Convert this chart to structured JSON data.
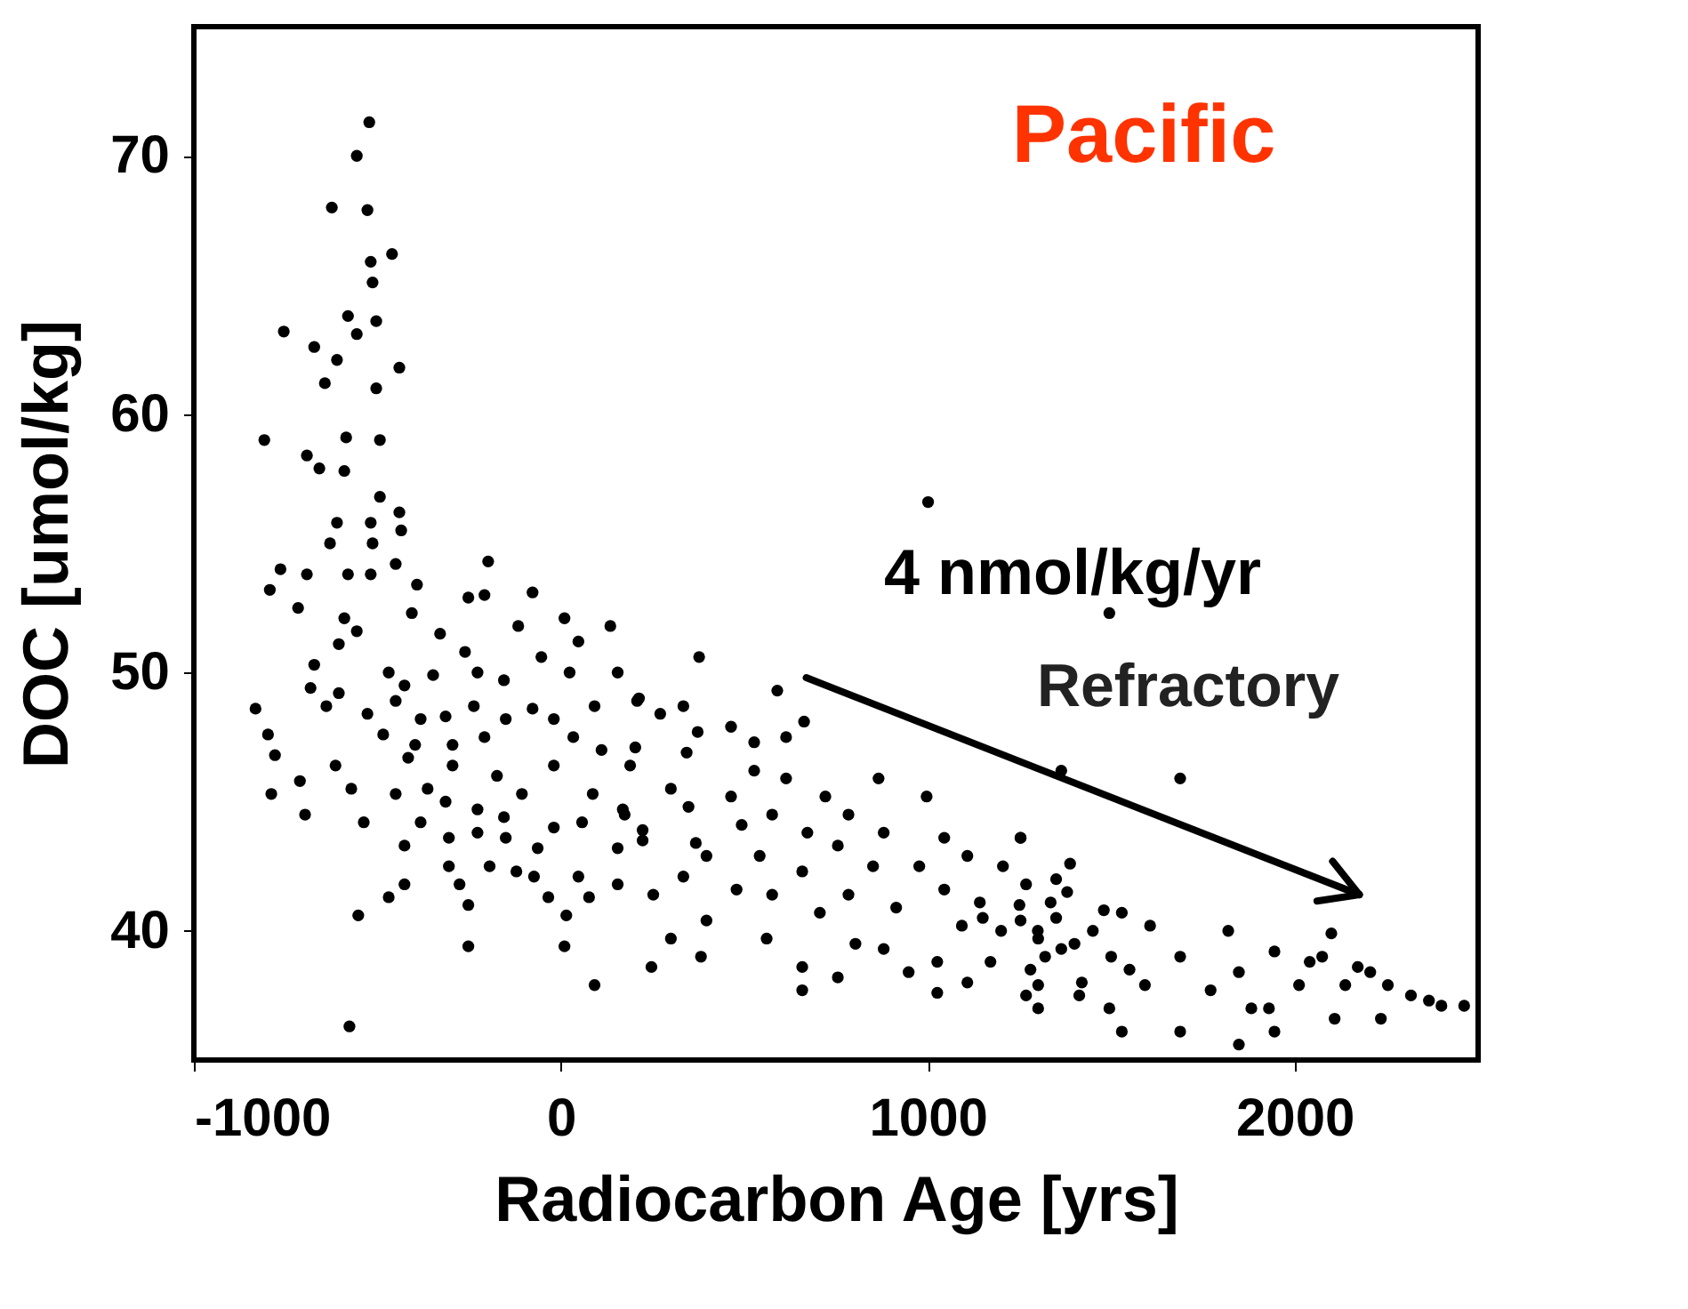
{
  "chart_data": {
    "type": "scatter",
    "xlabel": "Radiocarbon Age [yrs]",
    "ylabel": "DOC [umol/kg]",
    "annotations": [
      "Pacific",
      "4 nmol/kg/yr",
      "Refractory"
    ],
    "xlim": [
      -1000,
      2500
    ],
    "xticks": [
      -1000,
      0,
      1000,
      2000
    ],
    "ylim": [
      35,
      75
    ],
    "yticks": [
      40,
      50,
      60,
      70
    ],
    "grid": false,
    "series": [
      {
        "color": "#000000",
        "marker": "circle",
        "x": [
          -522,
          -556,
          -624,
          -527,
          -460,
          -518,
          -513,
          -755,
          -580,
          -556,
          -503,
          -672,
          -610,
          -643,
          -503,
          -440,
          -808,
          -585,
          -493,
          -692,
          -658,
          -590,
          -493,
          -440,
          -518,
          -435,
          -610,
          -629,
          -513,
          -764,
          -692,
          -793,
          -580,
          -518,
          -450,
          -198,
          -716,
          -392,
          -252,
          -208,
          -77,
          -590,
          -556,
          -406,
          -329,
          -116,
          10,
          48,
          135,
          -605,
          -261,
          -53,
          -672,
          -469,
          -426,
          -348,
          -227,
          -155,
          24,
          155,
          -682,
          -605,
          -832,
          -639,
          -527,
          -450,
          -382,
          -314,
          -237,
          -150,
          -77,
          -19,
          92,
          208,
          -798,
          -484,
          -397,
          -295,
          -208,
          34,
          111,
          -779,
          -416,
          -295,
          -19,
          189,
          -614,
          -711,
          -571,
          -789,
          -450,
          -363,
          -174,
          -106,
          87,
          169,
          -697,
          -314,
          -227,
          -382,
          -155,
          -19,
          -537,
          -305,
          -227,
          58,
          223,
          -426,
          -150,
          -63,
          155,
          -305,
          -194,
          -121,
          -73,
          48,
          155,
          -276,
          -426,
          -469,
          -34,
          77,
          -252,
          15,
          -552,
          -252,
          10,
          92,
          -576,
          377,
          590,
          213,
          334,
          271,
          663,
          464,
          373,
          614,
          527,
          203,
          343,
          527,
          866,
          614,
          997,
          300,
          721,
          464,
          348,
          576,
          784,
          174,
          493,
          672,
          880,
          1045,
          1253,
          223,
          368,
          755,
          1108,
          542,
          397,
          851,
          977,
          1205,
          334,
          658,
          1268,
          1045,
          479,
          252,
          784,
          576,
          1142,
          1335,
          914,
          706,
          397,
          1253,
          1093,
          561,
          300,
          803,
          1301,
          382,
          880,
          1026,
          1171,
          247,
          658,
          948,
          755,
          1108,
          658,
          1026,
          1268,
          1301,
          1300,
          1350,
          1400,
          1250,
          1320,
          1380,
          1450,
          1200,
          1280,
          1420,
          1500,
          1550,
          1480,
          1150,
          1350,
          1364,
          1688,
          1253,
          1388,
          2100,
          1945,
          2254,
          2366,
          2400,
          2172,
          1819,
          1688,
          1606,
          1529,
          1529,
          1688,
          1495,
          1882,
          1945,
          2109,
          2235,
          2317,
          2012,
          2041,
          1848,
          1771,
          1592,
          1364,
          1301,
          1413,
          1848,
          1930,
          2138,
          2206,
          2075,
          2462,
          1001,
          1495
        ],
        "values": [
          71.3,
          70.0,
          68.0,
          67.9,
          66.2,
          65.9,
          65.1,
          63.2,
          63.8,
          63.1,
          63.6,
          62.6,
          62.1,
          61.2,
          61.0,
          61.8,
          59.0,
          59.1,
          59.0,
          58.4,
          57.9,
          57.8,
          56.8,
          56.2,
          55.8,
          55.5,
          55.8,
          55.0,
          55.0,
          54.0,
          53.8,
          53.2,
          53.8,
          53.8,
          54.2,
          54.3,
          52.5,
          53.4,
          52.9,
          53.0,
          53.1,
          52.1,
          51.6,
          52.3,
          51.5,
          51.8,
          52.1,
          51.2,
          51.8,
          51.1,
          50.8,
          50.6,
          50.3,
          50.0,
          49.5,
          49.9,
          50.0,
          49.7,
          50.0,
          50.0,
          49.4,
          49.2,
          48.6,
          48.7,
          48.4,
          48.9,
          48.2,
          48.3,
          48.7,
          48.2,
          48.6,
          48.2,
          48.7,
          48.9,
          47.6,
          47.6,
          47.2,
          47.2,
          47.5,
          47.5,
          47.0,
          46.8,
          46.7,
          46.4,
          46.4,
          46.4,
          46.4,
          45.8,
          45.5,
          45.3,
          45.3,
          45.5,
          46.0,
          45.3,
          45.3,
          44.7,
          44.5,
          45.0,
          44.7,
          44.2,
          44.4,
          44.0,
          44.2,
          43.6,
          43.8,
          44.2,
          43.9,
          43.3,
          43.6,
          43.2,
          43.2,
          42.5,
          42.5,
          42.3,
          42.1,
          42.1,
          41.8,
          41.8,
          41.8,
          41.3,
          41.3,
          41.3,
          41.0,
          40.6,
          40.6,
          39.4,
          39.4,
          37.9,
          36.3,
          50.6,
          49.3,
          49.0,
          48.7,
          48.4,
          48.1,
          47.9,
          47.7,
          47.5,
          47.3,
          47.1,
          46.9,
          46.2,
          45.9,
          45.9,
          45.2,
          45.5,
          45.2,
          45.2,
          44.8,
          44.5,
          44.5,
          44.5,
          44.1,
          43.8,
          43.8,
          43.6,
          43.6,
          43.5,
          43.4,
          43.3,
          42.9,
          42.9,
          42.9,
          42.5,
          42.5,
          42.5,
          42.1,
          42.3,
          41.8,
          41.6,
          41.6,
          41.4,
          41.4,
          41.4,
          41.1,
          41.1,
          40.9,
          40.7,
          40.4,
          40.4,
          40.2,
          39.7,
          39.7,
          39.5,
          39.7,
          39.0,
          39.3,
          38.8,
          38.8,
          38.6,
          38.6,
          38.4,
          38.2,
          38.0,
          37.7,
          37.6,
          37.5,
          37.0,
          40.0,
          40.5,
          39.5,
          41.0,
          39.0,
          41.5,
          40.0,
          40.0,
          38.5,
          38.0,
          39.0,
          38.5,
          40.8,
          40.5,
          42.0,
          46.2,
          45.9,
          43.6,
          42.6,
          39.9,
          39.2,
          37.9,
          37.3,
          37.1,
          38.6,
          40.0,
          39.0,
          40.2,
          40.7,
          36.1,
          36.1,
          37.0,
          37.0,
          36.1,
          36.6,
          36.6,
          37.5,
          37.9,
          38.8,
          38.4,
          37.7,
          37.9,
          39.3,
          37.9,
          37.5,
          35.6,
          37.0,
          37.9,
          38.4,
          39.0,
          37.1,
          56.6,
          52.3
        ]
      },
      {
        "type": "line",
        "color": "#000000",
        "line_style": "solid",
        "marker": "none",
        "x": [
          669,
          2176
        ],
        "values": [
          49.8,
          41.4
        ]
      }
    ]
  }
}
